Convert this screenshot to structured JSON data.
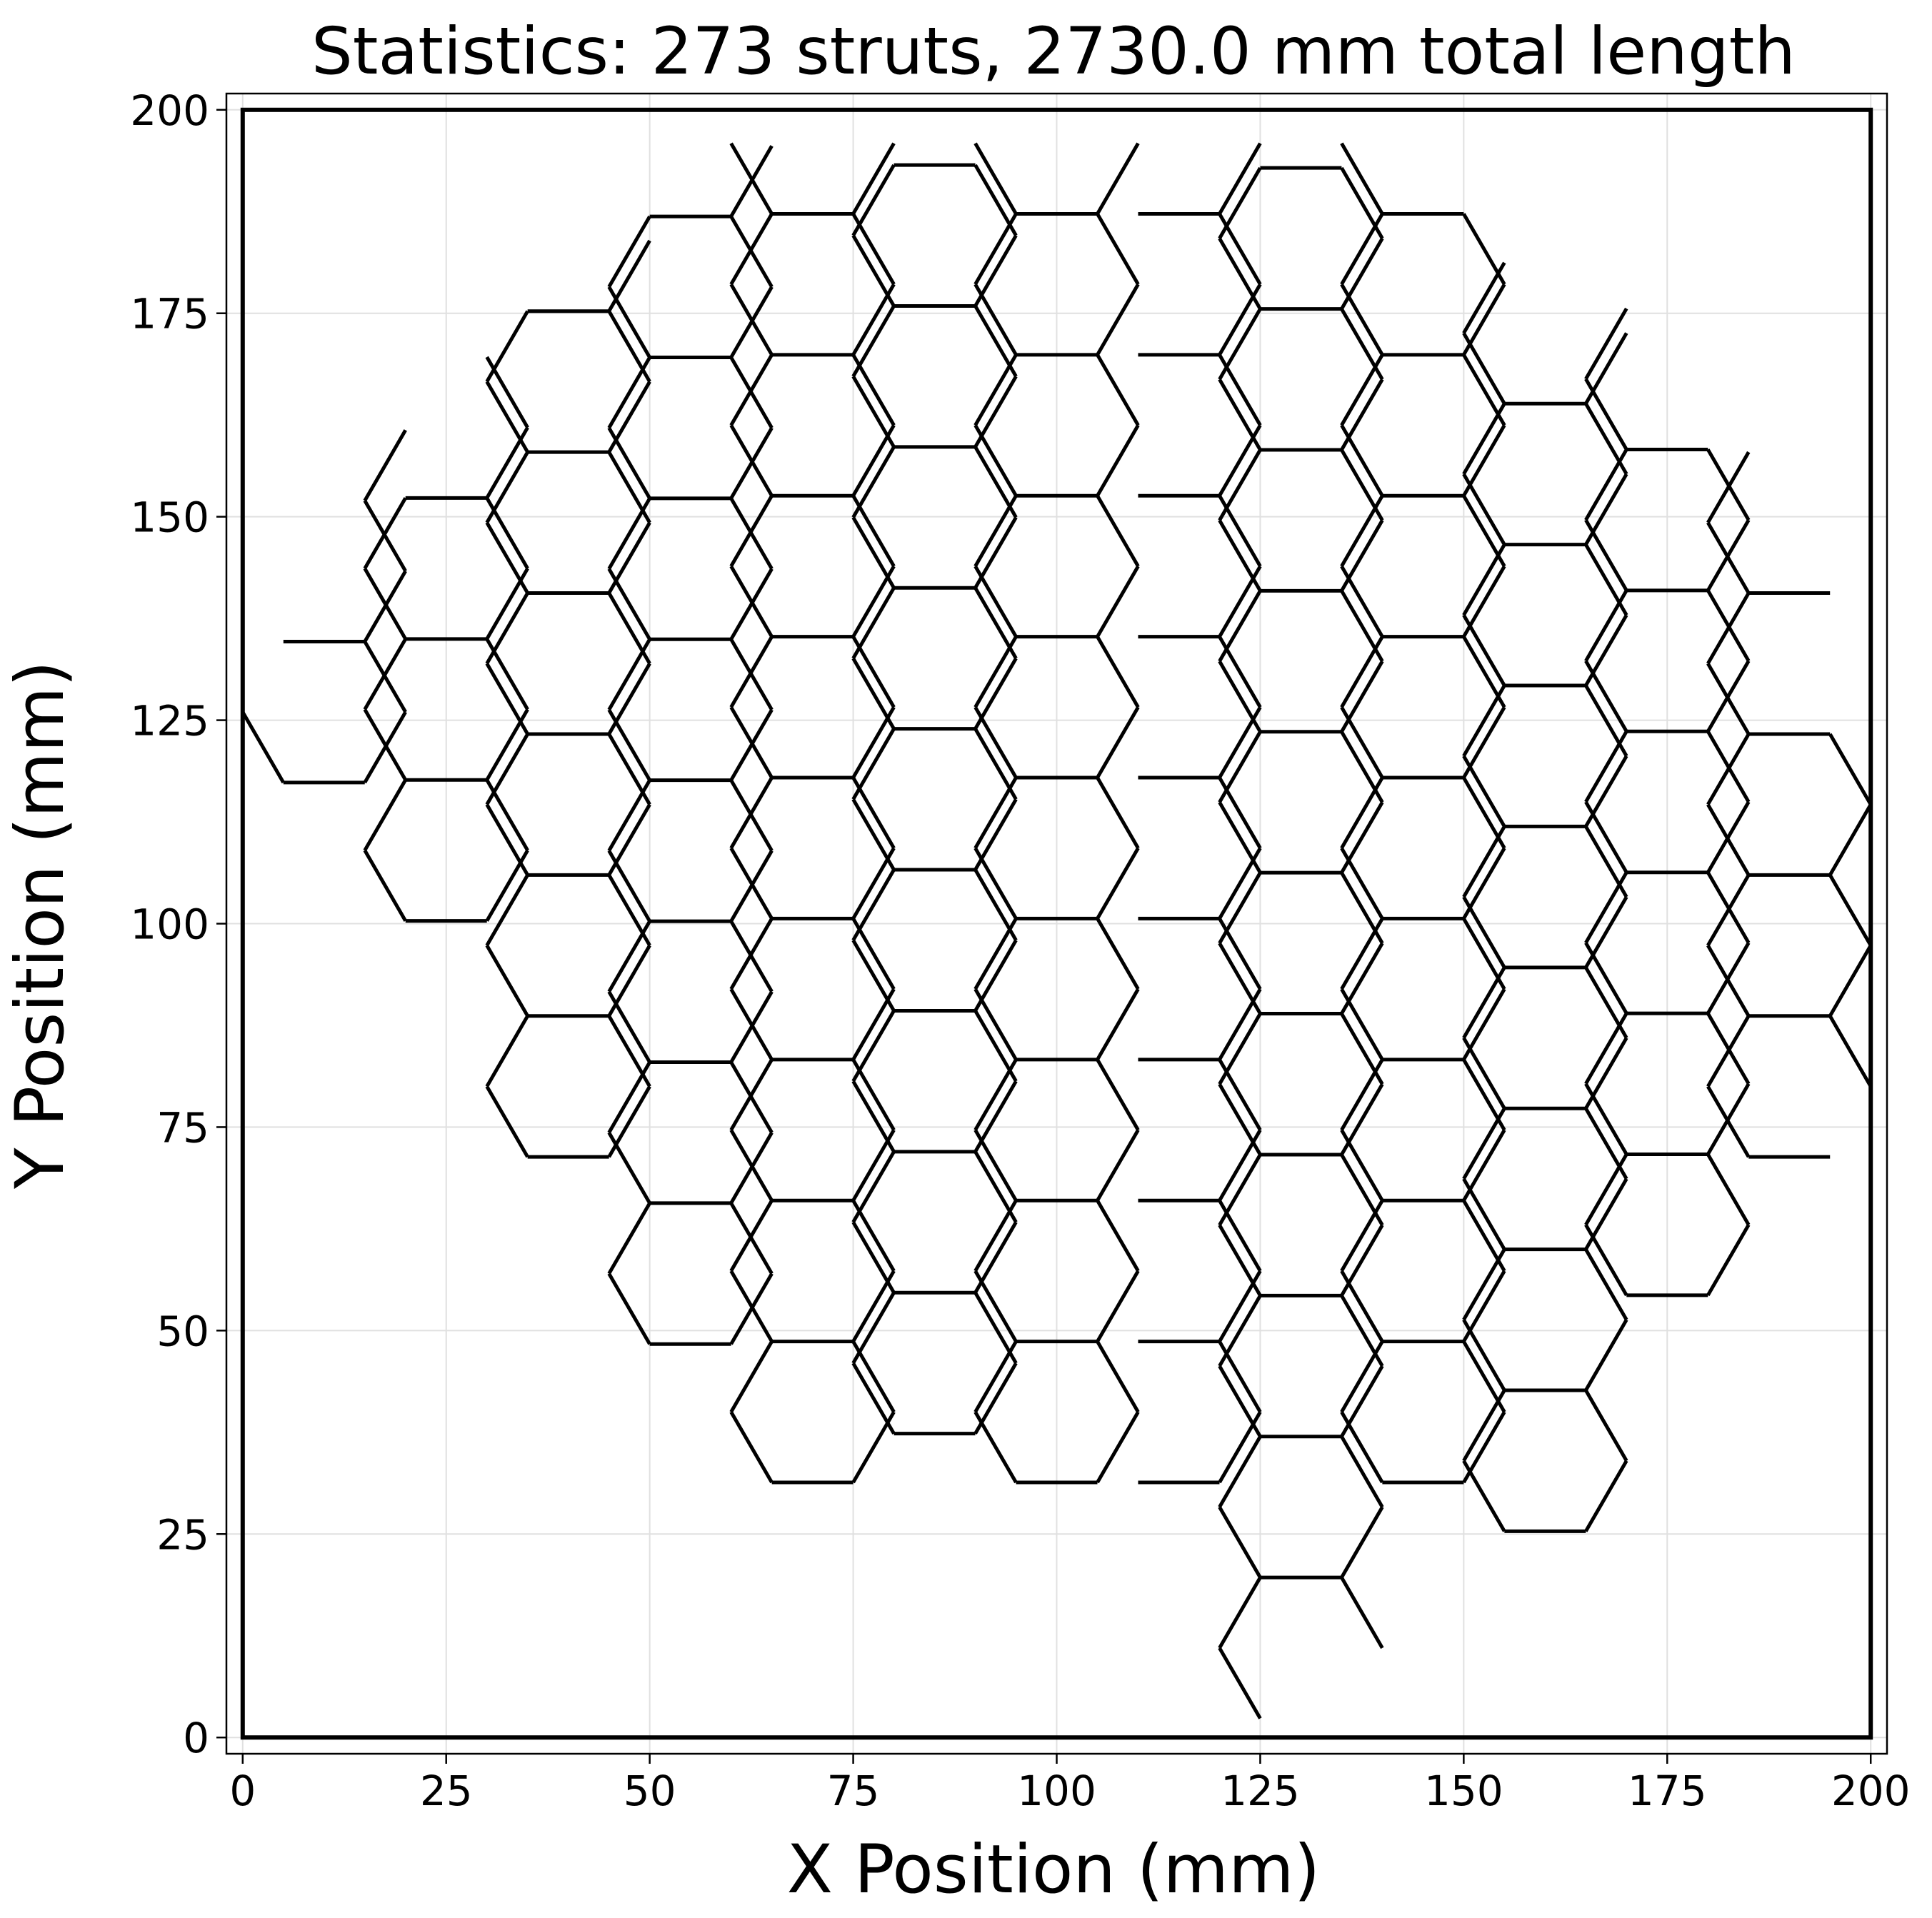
{
  "chart_data": {
    "type": "line",
    "title": "Statistics: 273 struts, 2730.0 mm total length",
    "xlabel": "X Position (mm)",
    "ylabel": "Y Position (mm)",
    "xlim": [
      -2,
      202
    ],
    "ylim": [
      -2,
      202
    ],
    "xticks": [
      0,
      25,
      50,
      75,
      100,
      125,
      150,
      175,
      200
    ],
    "yticks": [
      0,
      25,
      50,
      75,
      100,
      125,
      150,
      175,
      200
    ],
    "grid": true,
    "boundary": {
      "x": [
        0,
        200
      ],
      "y": [
        0,
        200
      ]
    },
    "lattice": {
      "cell": "hexagon",
      "strut_length": 10,
      "center_x_spacing": 15,
      "center_y_spacing": 17.32,
      "column_x": [
        10,
        25,
        40,
        55,
        70,
        85,
        100,
        115,
        130,
        145,
        160,
        175,
        190
      ],
      "column_first_center_y": [
        126,
        109,
        80,
        57,
        40,
        46,
        40,
        40,
        11,
        40,
        34,
        63,
        80
      ],
      "region": {
        "center": [
          100,
          100
        ],
        "radius": 100
      },
      "clip": [
        0,
        200
      ]
    },
    "stats": {
      "struts": 273,
      "total_length_mm": 2730.0
    }
  },
  "colors": {
    "lattice": "#000000",
    "grid": "#e0e0e0",
    "frame": "#000000",
    "background": "#ffffff"
  }
}
